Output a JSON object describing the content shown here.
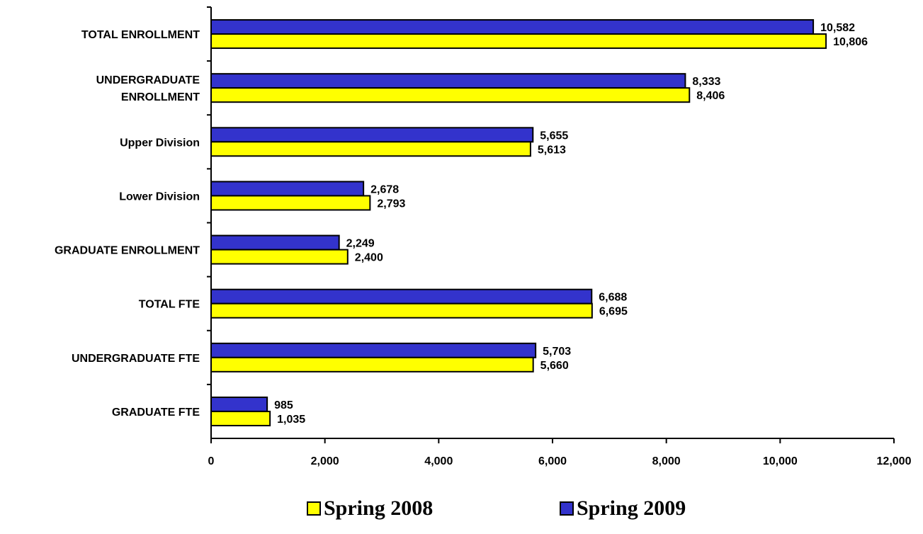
{
  "chart_data": {
    "type": "bar",
    "orientation": "horizontal",
    "categories": [
      [
        "TOTAL ENROLLMENT"
      ],
      [
        "UNDERGRADUATE",
        "ENROLLMENT"
      ],
      [
        "Upper Division"
      ],
      [
        "Lower Division"
      ],
      [
        "GRADUATE ENROLLMENT"
      ],
      [
        "TOTAL FTE"
      ],
      [
        "UNDERGRADUATE FTE"
      ],
      [
        "GRADUATE FTE"
      ]
    ],
    "series": [
      {
        "name": "Spring 2009",
        "color": "#3333CC",
        "values": [
          10582,
          8333,
          5655,
          2678,
          2249,
          6688,
          5703,
          985
        ],
        "labels": [
          "10,582",
          "8,333",
          "5,655",
          "2,678",
          "2,249",
          "6,688",
          "5,703",
          "985"
        ]
      },
      {
        "name": "Spring 2008",
        "color": "#FFFF00",
        "values": [
          10806,
          8406,
          5613,
          2793,
          2400,
          6695,
          5660,
          1035
        ],
        "labels": [
          "10,806",
          "8,406",
          "5,613",
          "2,793",
          "2,400",
          "6,695",
          "5,660",
          "1,035"
        ]
      }
    ],
    "xlim": [
      0,
      12000
    ],
    "xticks": [
      0,
      2000,
      4000,
      6000,
      8000,
      10000,
      12000
    ],
    "xtick_labels": [
      "0",
      "2,000",
      "4,000",
      "6,000",
      "8,000",
      "10,000",
      "12,000"
    ],
    "grid": false,
    "legend_position": "bottom"
  },
  "legend": {
    "items": [
      {
        "label": "Spring 2008",
        "color": "#FFFF00"
      },
      {
        "label": "Spring 2009",
        "color": "#3333CC"
      }
    ]
  }
}
